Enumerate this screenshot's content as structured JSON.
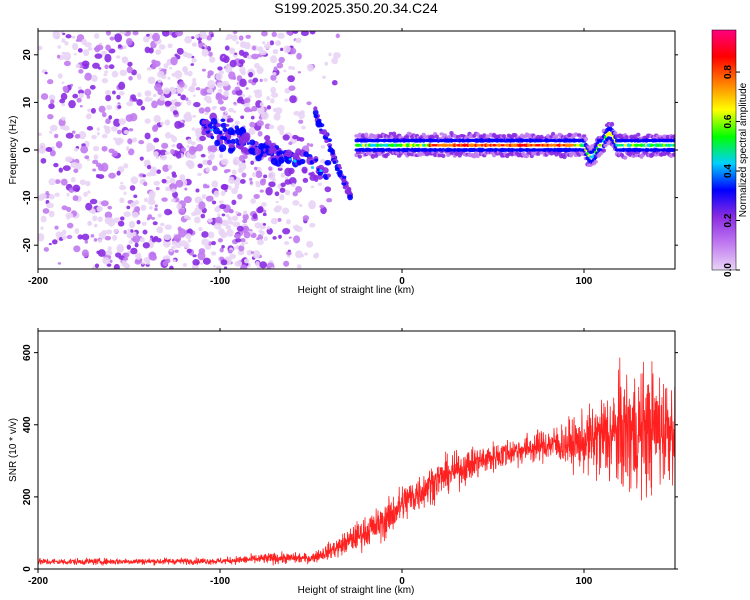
{
  "title": "S199.2025.350.20.34.C24",
  "chart_data": [
    {
      "type": "heatmap",
      "name": "spectrogram",
      "xlabel": "Height of straight line (km)",
      "ylabel": "Frequency (Hz)",
      "xlim": [
        -200,
        150
      ],
      "ylim": [
        -25,
        25
      ],
      "xticks": [
        -200,
        -100,
        0,
        100
      ],
      "yticks": [
        -20,
        -10,
        0,
        10,
        20
      ],
      "colorbar": {
        "label": "Normalized spectral amplitude",
        "ticks": [
          0.0,
          0.2,
          0.4,
          0.6,
          0.8
        ],
        "range": [
          0,
          0.97
        ],
        "colors": [
          "#e8d4f5",
          "#c07af0",
          "#8a2be2",
          "#0000ff",
          "#00d0ff",
          "#00ff00",
          "#ffff00",
          "#ff8000",
          "#ff0000",
          "#ff0080"
        ]
      },
      "features": {
        "scatter_region_x": [
          -200,
          -45
        ],
        "descending_streak": {
          "x": [
            -110,
            -40
          ],
          "freq_hz": [
            5,
            -5
          ]
        },
        "crossing_streak": {
          "x": [
            -48,
            -28
          ],
          "freq_hz": [
            8,
            -10
          ]
        },
        "flat_signal": {
          "x": [
            -25,
            150
          ],
          "freq_hz": 1
        }
      }
    },
    {
      "type": "line",
      "name": "snr",
      "xlabel": "Height of straight line (km)",
      "ylabel": "SNR (10 * v/v)",
      "xlim": [
        -200,
        150
      ],
      "ylim": [
        0,
        660
      ],
      "xticks": [
        -200,
        -100,
        0,
        100
      ],
      "yticks": [
        0,
        200,
        400,
        600
      ],
      "color": "#ff2020",
      "envelope": {
        "x": [
          -200,
          -100,
          -70,
          -50,
          -35,
          -25,
          -10,
          0,
          20,
          40,
          60,
          80,
          100,
          110,
          125,
          140,
          150
        ],
        "mean": [
          20,
          22,
          30,
          30,
          60,
          90,
          130,
          180,
          250,
          295,
          325,
          345,
          350,
          365,
          380,
          390,
          395
        ],
        "spread": [
          8,
          8,
          14,
          12,
          25,
          35,
          45,
          50,
          45,
          40,
          35,
          40,
          70,
          110,
          160,
          150,
          120
        ]
      }
    }
  ]
}
